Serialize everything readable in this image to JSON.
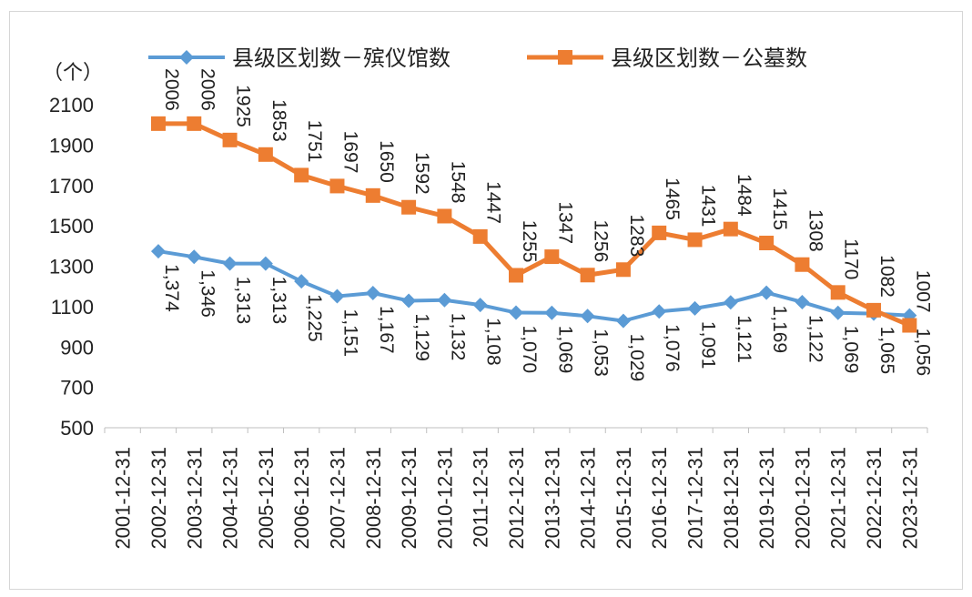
{
  "chart_data": {
    "type": "line",
    "unit_label": "（个）",
    "ylim": [
      500,
      2100
    ],
    "yticks": [
      500,
      700,
      900,
      1100,
      1300,
      1500,
      1700,
      1900,
      2100
    ],
    "categories": [
      "2001-12-31",
      "2002-12-31",
      "2003-12-31",
      "2004-12-31",
      "2005-12-31",
      "2006-12-31",
      "2007-12-31",
      "2008-12-31",
      "2009-12-31",
      "2010-12-31",
      "2011-12-31",
      "2012-12-31",
      "2013-12-31",
      "2014-12-31",
      "2015-12-31",
      "2016-12-31",
      "2017-12-31",
      "2018-12-31",
      "2019-12-31",
      "2020-12-31",
      "2021-12-31",
      "2022-12-31",
      "2023-12-31"
    ],
    "grid": false,
    "legend_position": "top",
    "series": [
      {
        "name": "县级区划数－殡仪馆数",
        "color": "#5B9BD5",
        "marker": "diamond",
        "values": [
          null,
          1374,
          1346,
          1313,
          1313,
          1225,
          1151,
          1167,
          1129,
          1132,
          1108,
          1070,
          1069,
          1053,
          1029,
          1076,
          1091,
          1121,
          1169,
          1122,
          1069,
          1065,
          1056
        ],
        "labels": [
          "",
          "1,374",
          "1,346",
          "1,313",
          "1,313",
          "1,225",
          "1,151",
          "1,167",
          "1,129",
          "1,132",
          "1,108",
          "1,070",
          "1,069",
          "1,053",
          "1,029",
          "1,076",
          "1,091",
          "1,121",
          "1,169",
          "1,122",
          "1,069",
          "1,065",
          "1,056"
        ]
      },
      {
        "name": "县级区划数－公墓数",
        "color": "#ED7D31",
        "marker": "square",
        "values": [
          null,
          2006,
          2006,
          1925,
          1853,
          1751,
          1697,
          1650,
          1592,
          1548,
          1447,
          1255,
          1347,
          1256,
          1283,
          1465,
          1431,
          1484,
          1415,
          1308,
          1170,
          1082,
          1007
        ],
        "labels": [
          "",
          "2006",
          "2006",
          "1925",
          "1853",
          "1751",
          "1697",
          "1650",
          "1592",
          "1548",
          "1447",
          "1255",
          "1347",
          "1256",
          "1283",
          "1465",
          "1431",
          "1484",
          "1415",
          "1308",
          "1170",
          "1082",
          "1007"
        ]
      }
    ]
  }
}
